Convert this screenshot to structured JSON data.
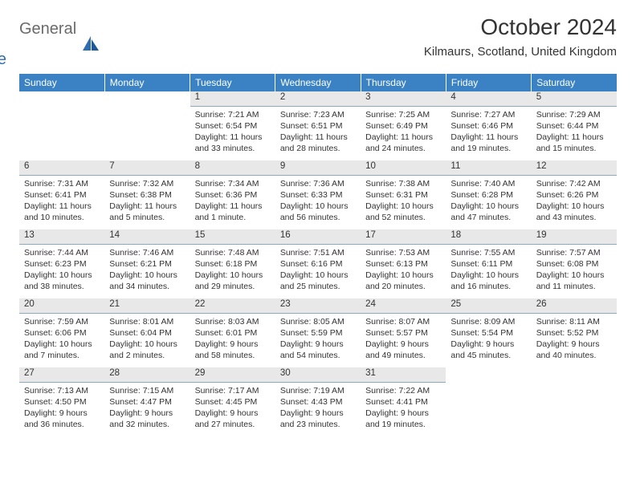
{
  "brand": {
    "part1": "General",
    "part2": "Blue"
  },
  "title": "October 2024",
  "location": "Kilmaurs, Scotland, United Kingdom",
  "colors": {
    "header_bg": "#3a82c4",
    "header_text": "#ffffff",
    "daynum_bg": "#e8e8e8",
    "daynum_border": "#88a9c8",
    "body_text": "#333333",
    "logo_gray": "#6a6a6a",
    "logo_blue": "#2f6fb0"
  },
  "weekdays": [
    "Sunday",
    "Monday",
    "Tuesday",
    "Wednesday",
    "Thursday",
    "Friday",
    "Saturday"
  ],
  "weeks": [
    [
      null,
      null,
      {
        "n": "1",
        "sr": "7:21 AM",
        "ss": "6:54 PM",
        "dl": "11 hours and 33 minutes."
      },
      {
        "n": "2",
        "sr": "7:23 AM",
        "ss": "6:51 PM",
        "dl": "11 hours and 28 minutes."
      },
      {
        "n": "3",
        "sr": "7:25 AM",
        "ss": "6:49 PM",
        "dl": "11 hours and 24 minutes."
      },
      {
        "n": "4",
        "sr": "7:27 AM",
        "ss": "6:46 PM",
        "dl": "11 hours and 19 minutes."
      },
      {
        "n": "5",
        "sr": "7:29 AM",
        "ss": "6:44 PM",
        "dl": "11 hours and 15 minutes."
      }
    ],
    [
      {
        "n": "6",
        "sr": "7:31 AM",
        "ss": "6:41 PM",
        "dl": "11 hours and 10 minutes."
      },
      {
        "n": "7",
        "sr": "7:32 AM",
        "ss": "6:38 PM",
        "dl": "11 hours and 5 minutes."
      },
      {
        "n": "8",
        "sr": "7:34 AM",
        "ss": "6:36 PM",
        "dl": "11 hours and 1 minute."
      },
      {
        "n": "9",
        "sr": "7:36 AM",
        "ss": "6:33 PM",
        "dl": "10 hours and 56 minutes."
      },
      {
        "n": "10",
        "sr": "7:38 AM",
        "ss": "6:31 PM",
        "dl": "10 hours and 52 minutes."
      },
      {
        "n": "11",
        "sr": "7:40 AM",
        "ss": "6:28 PM",
        "dl": "10 hours and 47 minutes."
      },
      {
        "n": "12",
        "sr": "7:42 AM",
        "ss": "6:26 PM",
        "dl": "10 hours and 43 minutes."
      }
    ],
    [
      {
        "n": "13",
        "sr": "7:44 AM",
        "ss": "6:23 PM",
        "dl": "10 hours and 38 minutes."
      },
      {
        "n": "14",
        "sr": "7:46 AM",
        "ss": "6:21 PM",
        "dl": "10 hours and 34 minutes."
      },
      {
        "n": "15",
        "sr": "7:48 AM",
        "ss": "6:18 PM",
        "dl": "10 hours and 29 minutes."
      },
      {
        "n": "16",
        "sr": "7:51 AM",
        "ss": "6:16 PM",
        "dl": "10 hours and 25 minutes."
      },
      {
        "n": "17",
        "sr": "7:53 AM",
        "ss": "6:13 PM",
        "dl": "10 hours and 20 minutes."
      },
      {
        "n": "18",
        "sr": "7:55 AM",
        "ss": "6:11 PM",
        "dl": "10 hours and 16 minutes."
      },
      {
        "n": "19",
        "sr": "7:57 AM",
        "ss": "6:08 PM",
        "dl": "10 hours and 11 minutes."
      }
    ],
    [
      {
        "n": "20",
        "sr": "7:59 AM",
        "ss": "6:06 PM",
        "dl": "10 hours and 7 minutes."
      },
      {
        "n": "21",
        "sr": "8:01 AM",
        "ss": "6:04 PM",
        "dl": "10 hours and 2 minutes."
      },
      {
        "n": "22",
        "sr": "8:03 AM",
        "ss": "6:01 PM",
        "dl": "9 hours and 58 minutes."
      },
      {
        "n": "23",
        "sr": "8:05 AM",
        "ss": "5:59 PM",
        "dl": "9 hours and 54 minutes."
      },
      {
        "n": "24",
        "sr": "8:07 AM",
        "ss": "5:57 PM",
        "dl": "9 hours and 49 minutes."
      },
      {
        "n": "25",
        "sr": "8:09 AM",
        "ss": "5:54 PM",
        "dl": "9 hours and 45 minutes."
      },
      {
        "n": "26",
        "sr": "8:11 AM",
        "ss": "5:52 PM",
        "dl": "9 hours and 40 minutes."
      }
    ],
    [
      {
        "n": "27",
        "sr": "7:13 AM",
        "ss": "4:50 PM",
        "dl": "9 hours and 36 minutes."
      },
      {
        "n": "28",
        "sr": "7:15 AM",
        "ss": "4:47 PM",
        "dl": "9 hours and 32 minutes."
      },
      {
        "n": "29",
        "sr": "7:17 AM",
        "ss": "4:45 PM",
        "dl": "9 hours and 27 minutes."
      },
      {
        "n": "30",
        "sr": "7:19 AM",
        "ss": "4:43 PM",
        "dl": "9 hours and 23 minutes."
      },
      {
        "n": "31",
        "sr": "7:22 AM",
        "ss": "4:41 PM",
        "dl": "9 hours and 19 minutes."
      },
      null,
      null
    ]
  ],
  "labels": {
    "sunrise": "Sunrise:",
    "sunset": "Sunset:",
    "daylight": "Daylight:"
  }
}
